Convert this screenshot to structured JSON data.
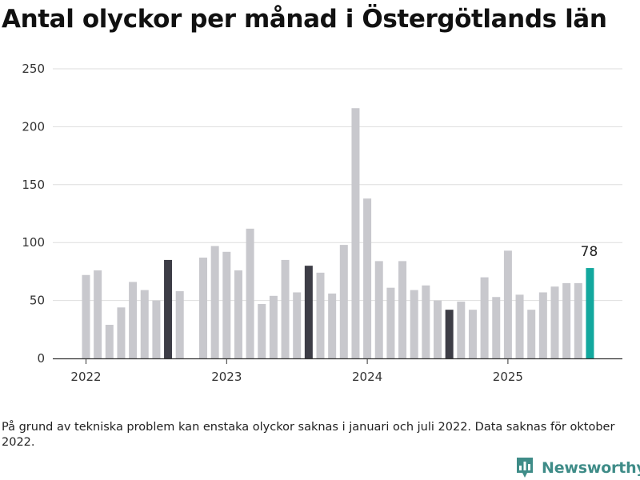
{
  "chart_data": {
    "type": "bar",
    "title": "Antal olyckor per månad i Östergötlands län",
    "x": [
      "2022-01",
      "2022-02",
      "2022-03",
      "2022-04",
      "2022-05",
      "2022-06",
      "2022-07",
      "2022-08",
      "2022-09",
      "2022-10",
      "2022-11",
      "2022-12",
      "2023-01",
      "2023-02",
      "2023-03",
      "2023-04",
      "2023-05",
      "2023-06",
      "2023-07",
      "2023-08",
      "2023-09",
      "2023-10",
      "2023-11",
      "2023-12",
      "2024-01",
      "2024-02",
      "2024-03",
      "2024-04",
      "2024-05",
      "2024-06",
      "2024-07",
      "2024-08",
      "2024-09",
      "2024-10",
      "2024-11",
      "2024-12",
      "2025-01",
      "2025-02",
      "2025-03",
      "2025-04",
      "2025-05",
      "2025-06",
      "2025-07",
      "2025-08"
    ],
    "values": [
      72,
      76,
      29,
      44,
      66,
      59,
      50,
      85,
      58,
      null,
      87,
      97,
      92,
      76,
      112,
      47,
      54,
      85,
      57,
      80,
      74,
      56,
      98,
      216,
      138,
      84,
      61,
      84,
      59,
      63,
      50,
      42,
      49,
      42,
      70,
      53,
      93,
      55,
      42,
      57,
      62,
      65,
      65,
      78
    ],
    "highlight": {
      "dark_months": [
        "2022-08",
        "2023-08",
        "2024-08"
      ],
      "latest_month": "2025-08",
      "latest_label": "78"
    },
    "x_ticks": [
      "2022",
      "2023",
      "2024",
      "2025"
    ],
    "y_ticks": [
      0,
      50,
      100,
      150,
      200,
      250
    ],
    "ylim": [
      0,
      250
    ],
    "grid": true,
    "colors": {
      "default": "#c8c8cd",
      "dark": "#3d3d46",
      "latest": "#13a89e",
      "grid": "#dedede",
      "axis": "#333333"
    }
  },
  "footnote": "På grund av tekniska problem kan enstaka olyckor saknas i januari och juli 2022. Data saknas för oktober 2022.",
  "brand": {
    "name": "Newsworthy",
    "icon": "newsworthy-logo-icon",
    "color": "#3f8c88"
  }
}
